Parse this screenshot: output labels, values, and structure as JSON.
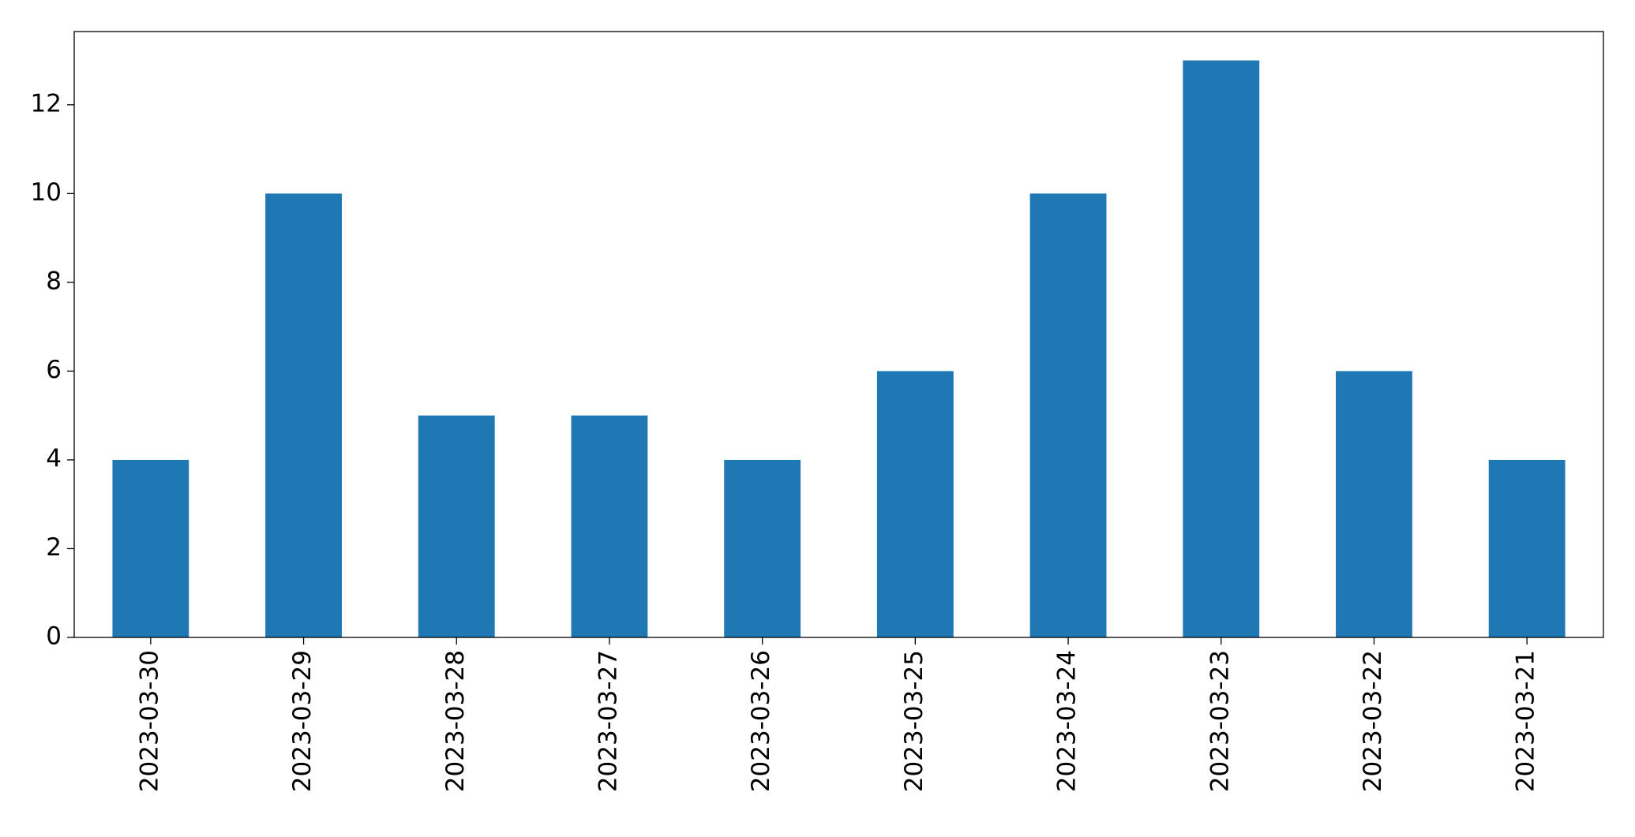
{
  "chart_data": {
    "type": "bar",
    "categories": [
      "2023-03-30",
      "2023-03-29",
      "2023-03-28",
      "2023-03-27",
      "2023-03-26",
      "2023-03-25",
      "2023-03-24",
      "2023-03-23",
      "2023-03-22",
      "2023-03-21"
    ],
    "values": [
      4,
      10,
      5,
      5,
      4,
      6,
      10,
      13,
      6,
      4
    ],
    "color": "#1f77b4",
    "ylim": [
      0,
      13.65
    ],
    "yticks": [
      0,
      2,
      4,
      6,
      8,
      10,
      12
    ],
    "grid": false
  }
}
